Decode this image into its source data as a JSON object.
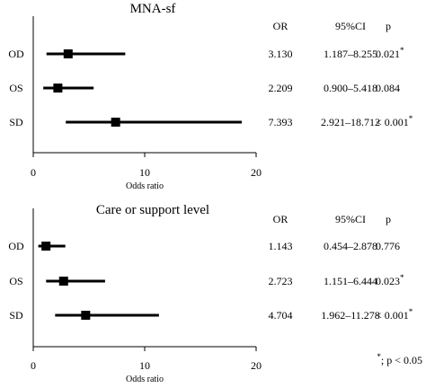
{
  "chart_data": [
    {
      "type": "forest",
      "title": "MNA-sf",
      "xlabel": "Odds ratio",
      "xlim": [
        0,
        20
      ],
      "xticks": [
        "0",
        "10",
        "20"
      ],
      "columns": {
        "or": "OR",
        "ci": "95%CI",
        "p": "p"
      },
      "rows": [
        {
          "label": "OD",
          "or": 3.13,
          "lo": 1.187,
          "hi": 8.255,
          "or_text": "3.130",
          "ci_text": "1.187–8.255",
          "p_text": "0.021",
          "sig": true
        },
        {
          "label": "OS",
          "or": 2.209,
          "lo": 0.9,
          "hi": 5.418,
          "or_text": "2.209",
          "ci_text": "0.900–5.418",
          "p_text": "0.084",
          "sig": false
        },
        {
          "label": "SD",
          "or": 7.393,
          "lo": 2.921,
          "hi": 18.712,
          "or_text": "7.393",
          "ci_text": "2.921–18.712",
          "p_text": "< 0.001",
          "sig": true
        }
      ]
    },
    {
      "type": "forest",
      "title": "Care or support level",
      "xlabel": "Odds ratio",
      "xlim": [
        0,
        20
      ],
      "xticks": [
        "0",
        "10",
        "20"
      ],
      "columns": {
        "or": "OR",
        "ci": "95%CI",
        "p": "p"
      },
      "rows": [
        {
          "label": "OD",
          "or": 1.143,
          "lo": 0.454,
          "hi": 2.878,
          "or_text": "1.143",
          "ci_text": "0.454–2.878",
          "p_text": "0.776",
          "sig": false
        },
        {
          "label": "OS",
          "or": 2.723,
          "lo": 1.151,
          "hi": 6.444,
          "or_text": "2.723",
          "ci_text": "1.151–6.444",
          "p_text": "0.023",
          "sig": true
        },
        {
          "label": "SD",
          "or": 4.704,
          "lo": 1.962,
          "hi": 11.278,
          "or_text": "4.704",
          "ci_text": "1.962–11.278",
          "p_text": "< 0.001",
          "sig": true
        }
      ]
    }
  ],
  "footnote": {
    "symbol": "*",
    "text": "; p < 0.05"
  }
}
